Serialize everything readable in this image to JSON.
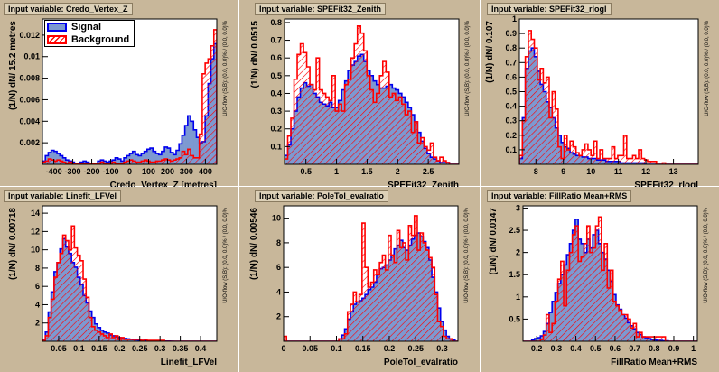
{
  "legend": {
    "signal": "Signal",
    "background": "Background"
  },
  "colors": {
    "signal_fill": "#7d99d1",
    "signal_line": "#0000ee",
    "background_line": "#ff0000",
    "frame_fill": "#ffffff",
    "pad_fill": "#c8b79a"
  },
  "panels": [
    {
      "title": "Input variable: Credo_Vertex_Z",
      "xlabel": "Credo_Vertex_Z  [metres]",
      "ylabel": "(1/N) dN/ 15.2 metres",
      "overflow": "U/O-flow (S,B): (0.0, 0.0)% / (0.0, 0.0)%"
    },
    {
      "title": "Input variable: SPEFit32_Zenith",
      "xlabel": "SPEFit32_Zenith",
      "ylabel": "(1/N) dN/ 0.0515",
      "overflow": "U/O-flow (S,B): (0.0, 0.0)% / (0.0, 0.0)%"
    },
    {
      "title": "Input variable: SPEFit32_rlogl",
      "xlabel": "SPEFit32_rlogl",
      "ylabel": "(1/N) dN/ 0.107",
      "overflow": "U/O-flow (S,B): (0.0, 0.0)% / (0.0, 0.0)%"
    },
    {
      "title": "Input variable: Linefit_LFVel",
      "xlabel": "Linefit_LFVel",
      "ylabel": "(1/N) dN/ 0.00718",
      "overflow": "U/O-flow (S,B): (0.0, 0.0)% / (0.0, 0.0)%"
    },
    {
      "title": "Input variable: PoleTol_evalratio",
      "xlabel": "PoleTol_evalratio",
      "ylabel": "(1/N) dN/ 0.00546",
      "overflow": "U/O-flow (S,B): (0.0, 0.0)% / (0.0, 0.0)%"
    },
    {
      "title": "Input variable: FillRatio Mean+RMS",
      "xlabel": "FillRatio Mean+RMS",
      "ylabel": "(1/N) dN/ 0.0147",
      "overflow": "U/O-flow (S,B): (0.0, 0.0)% / (0.0, 0.0)%"
    }
  ],
  "chart_data": [
    {
      "type": "histogram",
      "title": "Input variable: Credo_Vertex_Z",
      "xlabel": "Credo_Vertex_Z  [metres]",
      "ylabel": "(1/N) dN/ 15.2 metres",
      "xlim": [
        -460,
        460
      ],
      "ylim": [
        0,
        0.0135
      ],
      "xticks": [
        -400,
        -300,
        -200,
        -100,
        0,
        100,
        200,
        300,
        400
      ],
      "xticklabels": [
        "-400",
        "-300",
        "-200",
        "-100",
        "0",
        "100",
        "200",
        "300",
        "400"
      ],
      "yticks": [
        0.002,
        0.004,
        0.006,
        0.008,
        0.01,
        0.012
      ],
      "yticklabels": [
        "0.002",
        "0.004",
        "0.006",
        "0.008",
        "0.01",
        "0.012"
      ],
      "bins": 60,
      "series": [
        {
          "name": "Signal",
          "values": [
            0.0003,
            0.0008,
            0.0011,
            0.0013,
            0.0012,
            0.001,
            0.0008,
            0.0006,
            0.0004,
            0.0003,
            0.0002,
            0.0001,
            0.0001,
            0.0002,
            0.0003,
            0.0002,
            0.0001,
            0.0001,
            0.0001,
            0.0003,
            0.0004,
            0.0003,
            0.0002,
            0.0003,
            0.0004,
            0.0006,
            0.0005,
            0.0003,
            0.0006,
            0.0008,
            0.001,
            0.0012,
            0.0009,
            0.0008,
            0.001,
            0.0012,
            0.0014,
            0.0015,
            0.0012,
            0.001,
            0.0009,
            0.0012,
            0.0016,
            0.0015,
            0.0011,
            0.0009,
            0.0013,
            0.0019,
            0.0027,
            0.0036,
            0.0045,
            0.004,
            0.0032,
            0.0025,
            0.002,
            0.0021,
            0.0045,
            0.0075,
            0.0098,
            0.0112
          ]
        },
        {
          "name": "Background",
          "values": [
            0.0002,
            0.0003,
            0.0005,
            0.0004,
            0.0003,
            0.0004,
            0.0003,
            0.0002,
            0.0001,
            0.0002,
            0.0001,
            0.0001,
            0.0001,
            0.0001,
            0.0001,
            0.0001,
            0.0001,
            0.0001,
            0.0001,
            0.0001,
            0.0002,
            0.0001,
            0.0001,
            0.0001,
            0.0002,
            0.0001,
            0.0001,
            0.0001,
            0.0002,
            0.0003,
            0.0004,
            0.0003,
            0.0002,
            0.0002,
            0.0003,
            0.0004,
            0.0003,
            0.0002,
            0.0002,
            0.0003,
            0.0003,
            0.0004,
            0.0005,
            0.0004,
            0.0003,
            0.0004,
            0.0005,
            0.0006,
            0.0012,
            0.0009,
            0.0014,
            0.0008,
            0.0006,
            0.0006,
            0.0028,
            0.0084,
            0.0094,
            0.0098,
            0.011,
            0.0125
          ]
        }
      ]
    },
    {
      "type": "histogram",
      "title": "Input variable: SPEFit32_Zenith",
      "xlabel": "SPEFit32_Zenith",
      "ylabel": "(1/N) dN/ 0.0515",
      "xlim": [
        0.15,
        3.0
      ],
      "ylim": [
        0,
        0.82
      ],
      "xticks": [
        0.5,
        1,
        1.5,
        2,
        2.5
      ],
      "xticklabels": [
        "0.5",
        "1",
        "1.5",
        "2",
        "2.5"
      ],
      "yticks": [
        0.1,
        0.2,
        0.3,
        0.4,
        0.5,
        0.6,
        0.7,
        0.8
      ],
      "yticklabels": [
        "0.1",
        "0.2",
        "0.3",
        "0.4",
        "0.5",
        "0.6",
        "0.7",
        "0.8"
      ],
      "bins": 55,
      "series": [
        {
          "name": "Signal",
          "values": [
            0.05,
            0.11,
            0.2,
            0.3,
            0.38,
            0.43,
            0.46,
            0.44,
            0.45,
            0.4,
            0.38,
            0.35,
            0.34,
            0.33,
            0.35,
            0.32,
            0.32,
            0.36,
            0.42,
            0.47,
            0.53,
            0.56,
            0.58,
            0.61,
            0.62,
            0.58,
            0.53,
            0.5,
            0.47,
            0.45,
            0.43,
            0.43,
            0.44,
            0.45,
            0.43,
            0.42,
            0.4,
            0.38,
            0.35,
            0.32,
            0.28,
            0.24,
            0.18,
            0.13,
            0.09,
            0.06,
            0.04,
            0.03,
            0.02,
            0.01,
            0.01,
            0.01,
            0,
            0,
            0
          ]
        },
        {
          "name": "Background",
          "values": [
            0.03,
            0.16,
            0.26,
            0.48,
            0.62,
            0.68,
            0.63,
            0.55,
            0.45,
            0.42,
            0.6,
            0.42,
            0.4,
            0.38,
            0.36,
            0.5,
            0.3,
            0.34,
            0.3,
            0.45,
            0.48,
            0.6,
            0.68,
            0.78,
            0.74,
            0.64,
            0.5,
            0.42,
            0.35,
            0.4,
            0.5,
            0.58,
            0.52,
            0.38,
            0.4,
            0.36,
            0.38,
            0.34,
            0.28,
            0.3,
            0.18,
            0.24,
            0.12,
            0.15,
            0.1,
            0.08,
            0.12,
            0.04,
            0.02,
            0.04,
            0.02,
            0.01,
            0,
            0,
            0
          ]
        }
      ]
    },
    {
      "type": "histogram",
      "title": "Input variable: SPEFit32_rlogl",
      "xlabel": "SPEFit32_rlogl",
      "ylabel": "(1/N) dN/ 0.107",
      "xlim": [
        7.4,
        13.9
      ],
      "ylim": [
        0,
        1.0
      ],
      "xticks": [
        8,
        9,
        10,
        11,
        12,
        13
      ],
      "xticklabels": [
        "8",
        "9",
        "10",
        "11",
        "12",
        "13"
      ],
      "yticks": [
        0.1,
        0.2,
        0.3,
        0.4,
        0.5,
        0.6,
        0.7,
        0.8,
        0.9,
        1
      ],
      "yticklabels": [
        "0.1",
        "0.2",
        "0.3",
        "0.4",
        "0.5",
        "0.6",
        "0.7",
        "0.8",
        "0.9",
        "1"
      ],
      "bins": 60,
      "series": [
        {
          "name": "Signal",
          "values": [
            0.04,
            0.32,
            0.66,
            0.78,
            0.8,
            0.74,
            0.64,
            0.55,
            0.5,
            0.43,
            0.39,
            0.32,
            0.25,
            0.2,
            0.15,
            0.12,
            0.11,
            0.08,
            0.07,
            0.06,
            0.06,
            0.05,
            0.05,
            0.04,
            0.04,
            0.04,
            0.03,
            0.03,
            0.03,
            0.02,
            0.02,
            0.02,
            0.02,
            0.02,
            0.01,
            0.01,
            0.01,
            0.01,
            0.01,
            0.01,
            0.01,
            0.01,
            0,
            0,
            0,
            0,
            0,
            0,
            0,
            0,
            0,
            0,
            0,
            0,
            0,
            0,
            0,
            0,
            0,
            0
          ]
        },
        {
          "name": "Background",
          "values": [
            0.06,
            0.3,
            0.74,
            0.92,
            0.86,
            0.8,
            0.58,
            0.66,
            0.56,
            0.6,
            0.32,
            0.5,
            0.38,
            0.12,
            0.04,
            0.2,
            0.1,
            0.16,
            0.12,
            0.08,
            0.06,
            0.1,
            0.14,
            0.1,
            0.06,
            0.16,
            0.04,
            0.1,
            0.04,
            0.04,
            0.04,
            0.12,
            0.04,
            0.06,
            0.06,
            0.2,
            0.04,
            0.04,
            0.06,
            0.04,
            0.1,
            0.04,
            0.03,
            0.02,
            0.02,
            0.02,
            0,
            0,
            0.01,
            0,
            0,
            0,
            0,
            0,
            0,
            0,
            0,
            0,
            0,
            0
          ]
        }
      ]
    },
    {
      "type": "histogram",
      "title": "Input variable: Linefit_LFVel",
      "xlabel": "Linefit_LFVel",
      "ylabel": "(1/N) dN/ 0.00718",
      "xlim": [
        0.01,
        0.44
      ],
      "ylim": [
        0,
        14.8
      ],
      "xticks": [
        0.05,
        0.1,
        0.15,
        0.2,
        0.25,
        0.3,
        0.35,
        0.4
      ],
      "xticklabels": [
        "0.05",
        "0.1",
        "0.15",
        "0.2",
        "0.25",
        "0.3",
        "0.35",
        "0.4"
      ],
      "yticks": [
        2,
        4,
        6,
        8,
        10,
        12,
        14
      ],
      "yticklabels": [
        "2",
        "4",
        "6",
        "8",
        "10",
        "12",
        "14"
      ],
      "bins": 60,
      "series": [
        {
          "name": "Signal",
          "values": [
            0.2,
            1,
            3.2,
            5.4,
            7.6,
            8.6,
            10.1,
            11.2,
            10.3,
            9.6,
            8.6,
            8.1,
            7,
            6.2,
            5,
            4.2,
            3.3,
            2.6,
            1.9,
            1.5,
            1.2,
            1,
            0.9,
            0.7,
            0.6,
            0.5,
            0.4,
            0.35,
            0.3,
            0.25,
            0.2,
            0.18,
            0.15,
            0.12,
            0.1,
            0.08,
            0.07,
            0.05,
            0.05,
            0.04,
            0.03,
            0.02,
            0.02,
            0.02,
            0.01,
            0,
            0,
            0,
            0,
            0,
            0,
            0,
            0,
            0,
            0,
            0,
            0,
            0,
            0,
            0
          ]
        },
        {
          "name": "Background",
          "values": [
            0.1,
            0.6,
            2.6,
            4.6,
            7,
            8.6,
            9.6,
            11.6,
            11,
            10,
            12.6,
            10.2,
            9.4,
            8.8,
            6.8,
            4.8,
            2.6,
            1.6,
            1.2,
            1,
            0.8,
            0.6,
            0.4,
            0.8,
            0.4,
            0.6,
            0.2,
            0.4,
            0.2,
            0.2,
            0.2,
            0.2,
            0.2,
            0.2,
            0.1,
            0.2,
            0.1,
            0.1,
            0.1,
            0.1,
            0.1,
            0.1,
            0,
            0,
            0,
            0,
            0,
            0,
            0,
            0,
            0,
            0,
            0,
            0,
            0,
            0,
            0,
            0,
            0,
            0
          ]
        }
      ]
    },
    {
      "type": "histogram",
      "title": "Input variable: PoleTol_evalratio",
      "xlabel": "PoleTol_evalratio",
      "ylabel": "(1/N) dN/ 0.00546",
      "xlim": [
        0,
        0.33
      ],
      "ylim": [
        0,
        11.0
      ],
      "xticks": [
        0,
        0.05,
        0.1,
        0.15,
        0.2,
        0.25,
        0.3
      ],
      "xticklabels": [
        "0",
        "0.05",
        "0.1",
        "0.15",
        "0.2",
        "0.25",
        "0.3"
      ],
      "yticks": [
        2,
        4,
        6,
        8,
        10
      ],
      "yticklabels": [
        "2",
        "4",
        "6",
        "8",
        "10"
      ],
      "bins": 60,
      "series": [
        {
          "name": "Signal",
          "values": [
            0,
            0,
            0,
            0,
            0,
            0,
            0,
            0,
            0,
            0,
            0,
            0,
            0,
            0,
            0,
            0,
            0,
            0,
            0,
            0.2,
            0.5,
            1,
            1.8,
            2.4,
            3,
            3.2,
            3.3,
            3.5,
            3.8,
            4.2,
            4.4,
            4.8,
            5.4,
            5.9,
            6,
            6.2,
            6.6,
            7,
            7.5,
            7.8,
            8.2,
            7.6,
            7.4,
            7.8,
            8.3,
            8.6,
            8.8,
            8.5,
            8.1,
            7.6,
            6.6,
            5.2,
            4,
            2.7,
            1.6,
            0.9,
            0.4,
            0.2,
            0.1,
            0
          ]
        },
        {
          "name": "Background",
          "values": [
            0.4,
            0,
            0,
            0,
            0,
            0,
            0,
            0,
            0,
            0,
            0,
            0,
            0,
            0,
            0,
            0,
            0,
            0,
            0,
            0.2,
            0.2,
            0.6,
            2.4,
            3,
            4,
            3.2,
            3.8,
            9.6,
            6,
            4.4,
            4.8,
            5.8,
            5.4,
            6.4,
            7,
            5.8,
            8.6,
            7,
            6.4,
            9,
            7.6,
            8,
            6.6,
            9.4,
            8.6,
            10.2,
            7.4,
            8.8,
            8,
            7.4,
            6.8,
            6,
            3.8,
            1.6,
            1.2,
            0.4,
            0.2,
            0.2,
            0,
            0
          ]
        }
      ]
    },
    {
      "type": "histogram",
      "title": "Input variable: FillRatio Mean+RMS",
      "xlabel": "FillRatio Mean+RMS",
      "ylabel": "(1/N) dN/ 0.0147",
      "xlim": [
        0.13,
        1.02
      ],
      "ylim": [
        0,
        3.05
      ],
      "xticks": [
        0.2,
        0.3,
        0.4,
        0.5,
        0.6,
        0.7,
        0.8,
        0.9,
        1
      ],
      "xticklabels": [
        "0.2",
        "0.3",
        "0.4",
        "0.5",
        "0.6",
        "0.7",
        "0.8",
        "0.9",
        "1"
      ],
      "yticks": [
        0.5,
        1,
        1.5,
        2,
        2.5,
        3
      ],
      "yticklabels": [
        "0.5",
        "1",
        "1.5",
        "2",
        "2.5",
        "3"
      ],
      "bins": 60,
      "series": [
        {
          "name": "Signal",
          "values": [
            0,
            0,
            0,
            0.03,
            0.06,
            0.08,
            0.12,
            0.22,
            0.4,
            0.65,
            0.9,
            1.1,
            1.3,
            1.5,
            1.72,
            1.95,
            2.2,
            2.5,
            2.75,
            2.3,
            2.2,
            2.0,
            2.3,
            2.1,
            2.4,
            2.5,
            2.2,
            2.0,
            1.85,
            1.6,
            1.35,
            1.05,
            0.82,
            0.72,
            0.6,
            0.52,
            0.42,
            0.35,
            0.28,
            0.2,
            0.15,
            0.1,
            0.08,
            0.06,
            0.04,
            0.03,
            0.02,
            0.02,
            0.01,
            0.01,
            0,
            0,
            0,
            0,
            0,
            0,
            0,
            0,
            0,
            0
          ]
        },
        {
          "name": "Background",
          "values": [
            0,
            0,
            0,
            0,
            0,
            0,
            0.04,
            0.14,
            0.6,
            0.2,
            0.4,
            0.9,
            1.4,
            1.8,
            0.8,
            1.6,
            2.0,
            2.4,
            2.6,
            1.8,
            1.9,
            2.2,
            2.6,
            2.0,
            2.1,
            2.6,
            2.8,
            1.6,
            2.2,
            1.2,
            1.6,
            0.9,
            0.8,
            0.7,
            0.6,
            0.6,
            0.5,
            0.3,
            0.4,
            0.1,
            0.2,
            0.1,
            0.1,
            0.1,
            0.1,
            0.1,
            0.1,
            0.1,
            0.1,
            0,
            0,
            0,
            0,
            0,
            0,
            0,
            0,
            0,
            0,
            0
          ]
        }
      ]
    }
  ]
}
